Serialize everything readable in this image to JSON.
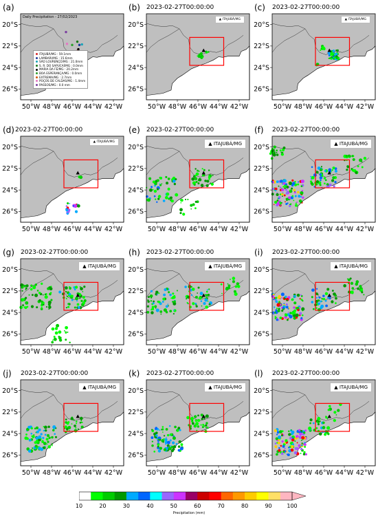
{
  "map_title_a": "Daily Precipitation - 27/02/2023",
  "timestamp": "2023-02-27T00:00:00",
  "station_label": "ITAJUBÁ/MG",
  "y_ticks": [
    "20°S",
    "22°S",
    "24°S",
    "26°S"
  ],
  "x_ticks": [
    "50°W",
    "48°W",
    "46°W",
    "44°W",
    "42°W"
  ],
  "panels": [
    {
      "letter": "(a)"
    },
    {
      "letter": "(b)"
    },
    {
      "letter": "(c)"
    },
    {
      "letter": "(d)"
    },
    {
      "letter": "(e)"
    },
    {
      "letter": "(f)"
    },
    {
      "letter": "(g)"
    },
    {
      "letter": "(h)"
    },
    {
      "letter": "(i)"
    },
    {
      "letter": "(j)"
    },
    {
      "letter": "(k)"
    },
    {
      "letter": "(l)"
    }
  ],
  "stations": [
    {
      "name": "ITAJUBÁ/MG : 59.1mm",
      "color": "#d62728"
    },
    {
      "name": "LAMBARI/MG : 15.6mm",
      "color": "#1f3b9a"
    },
    {
      "name": "SÃO LOURENÇO/MG : 21.0mm",
      "color": "#17a2b8"
    },
    {
      "name": "S. R. DO SAPUCAÍ/MG : 0.0mm",
      "color": "#1a7a1a"
    },
    {
      "name": "MARIA DA FÉ/MG : 20.2mm",
      "color": "#000000"
    },
    {
      "name": "BOA ESPERANÇA/MG : 0.0mm",
      "color": "#2ca02c"
    },
    {
      "name": "EXTREMA/MG : 2.7mm",
      "color": "#d35400"
    },
    {
      "name": "POÇOS DE CALDAS/MG : 1.4mm",
      "color": "#e377c2"
    },
    {
      "name": "PASSOS/MG : 0.0 mm",
      "color": "#7b3fa0"
    }
  ],
  "colorbar": {
    "ticks": [
      "10",
      "20",
      "30",
      "40",
      "50",
      "60",
      "70",
      "80",
      "90",
      "100"
    ],
    "label": "Precipitation (mm)",
    "colors": [
      "#ffffff",
      "#00ff00",
      "#00cc00",
      "#009900",
      "#00aaff",
      "#0066ff",
      "#00ffff",
      "#9966ff",
      "#cc33ff",
      "#990066",
      "#cc0000",
      "#ff0000",
      "#ff6600",
      "#ff9900",
      "#ffcc00",
      "#ffff00",
      "#ffe066",
      "#ffb6c1"
    ]
  },
  "colors": {
    "land": "#bfbfbf",
    "sea": "#ffffff",
    "box": "#ff0000",
    "border": "#000000"
  }
}
